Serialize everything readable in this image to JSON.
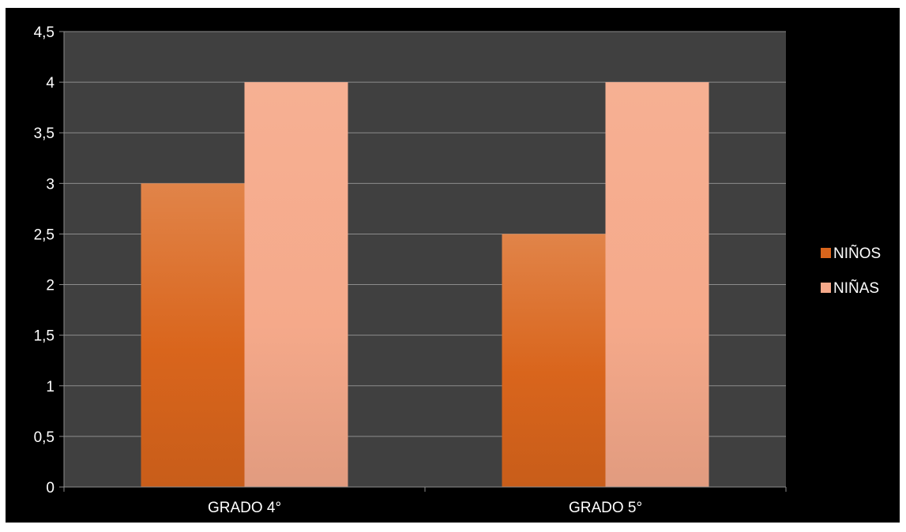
{
  "chart_data": {
    "type": "bar",
    "categories": [
      "GRADO 4°",
      "GRADO 5°"
    ],
    "series": [
      {
        "name": "NIÑOS",
        "values": [
          3,
          2.5
        ],
        "color": "#d9651c"
      },
      {
        "name": "NIÑAS",
        "values": [
          4,
          4
        ],
        "color": "#f5a98a"
      }
    ],
    "ylim": [
      0,
      4.5
    ],
    "y_ticks": [
      "0",
      "0,5",
      "1",
      "1,5",
      "2",
      "2,5",
      "3",
      "3,5",
      "4",
      "4,5"
    ],
    "grid": true,
    "legend_position": "right",
    "plot_background": "#404040",
    "chart_background": "#000000"
  }
}
